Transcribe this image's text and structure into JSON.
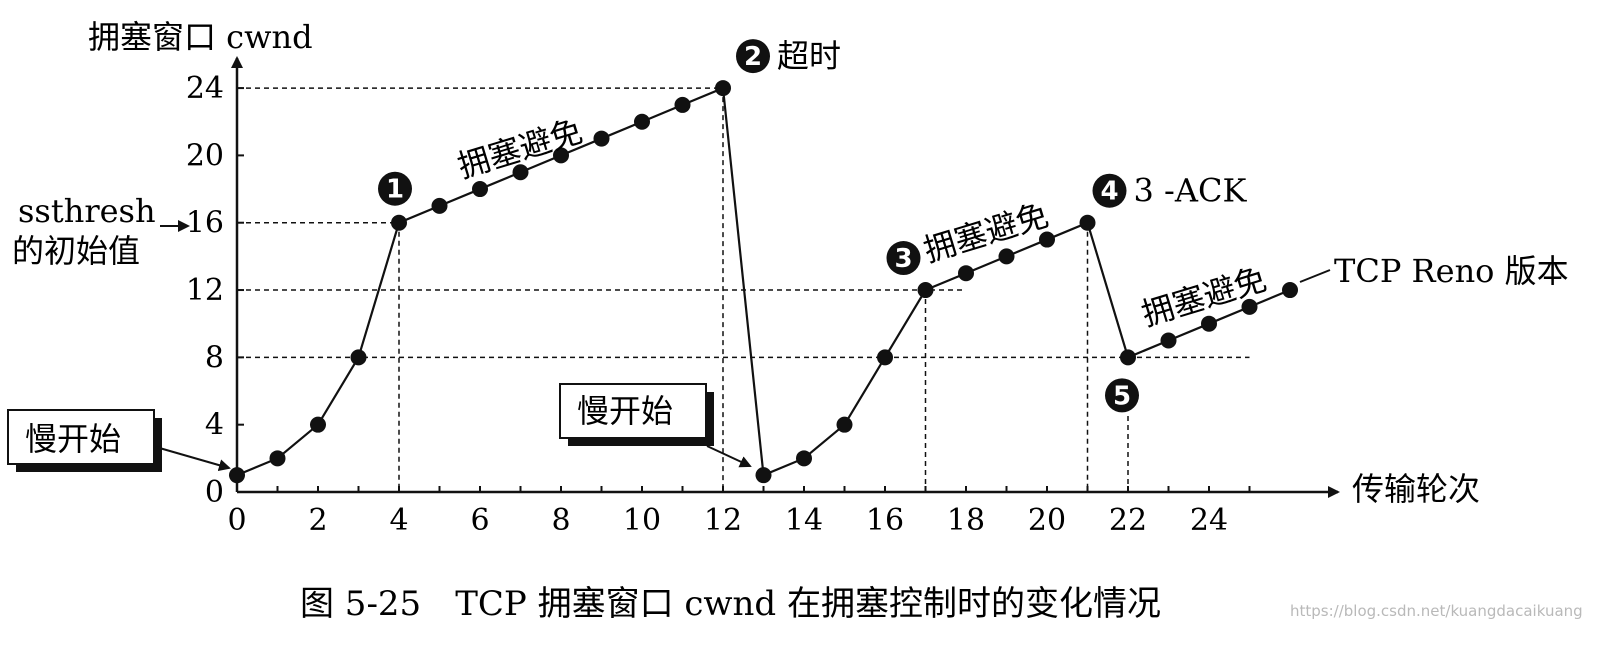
{
  "chart_data": {
    "type": "line",
    "title": "",
    "ylabel": "拥塞窗口 cwnd",
    "xlabel": "传输轮次",
    "x_ticks": [
      0,
      2,
      4,
      6,
      8,
      10,
      12,
      14,
      16,
      18,
      20,
      22,
      24
    ],
    "y_ticks": [
      0,
      4,
      8,
      12,
      16,
      20,
      24
    ],
    "xlim": [
      0,
      27
    ],
    "ylim": [
      0,
      25
    ],
    "series": [
      {
        "name": "TCP Reno 版本",
        "x": [
          0,
          1,
          2,
          3,
          4,
          5,
          6,
          7,
          8,
          9,
          10,
          11,
          12,
          13,
          14,
          15,
          16,
          17,
          18,
          19,
          20,
          21,
          22,
          23,
          24,
          25,
          26
        ],
        "y": [
          1,
          2,
          4,
          8,
          16,
          17,
          18,
          19,
          20,
          21,
          22,
          23,
          24,
          1,
          2,
          4,
          8,
          12,
          13,
          14,
          15,
          16,
          8,
          9,
          10,
          11,
          12
        ]
      }
    ],
    "ssthresh_label": [
      "ssthresh",
      "的初始值"
    ],
    "annotations": [
      {
        "badge": "1",
        "text": "",
        "x": 4,
        "y": 16
      },
      {
        "badge": "2",
        "text": "超时",
        "x": 12,
        "y": 24
      },
      {
        "badge": "3",
        "text": "",
        "x": 17,
        "y": 12
      },
      {
        "badge": "4",
        "text": "3 -ACK",
        "x": 21,
        "y": 16
      },
      {
        "badge": "5",
        "text": "",
        "x": 22,
        "y": 8
      }
    ],
    "phase_labels": [
      "拥塞避免",
      "拥塞避免",
      "拥塞避免"
    ],
    "slow_start_boxes": [
      "慢开始",
      "慢开始"
    ],
    "series_label": "TCP Reno 版本"
  },
  "caption": "图 5-25　TCP 拥塞窗口 cwnd 在拥塞控制时的变化情况",
  "watermark": "https://blog.csdn.net/kuangdacaikuang"
}
